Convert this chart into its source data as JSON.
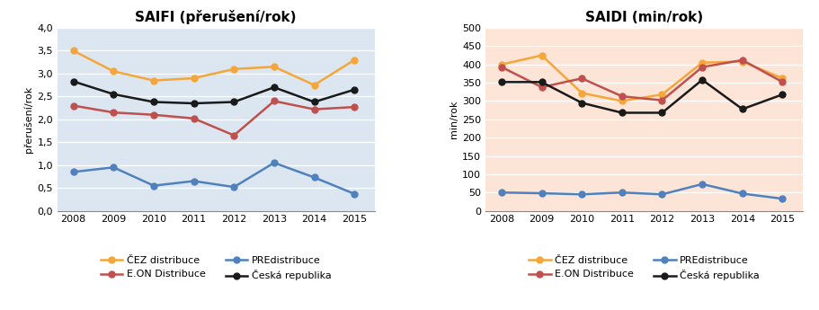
{
  "years": [
    2008,
    2009,
    2010,
    2011,
    2012,
    2013,
    2014,
    2015
  ],
  "saifi": {
    "title": "SAIFI (přerušení/rok)",
    "ylabel": "přerušení/rok",
    "ylim": [
      0.0,
      4.0
    ],
    "yticks": [
      0.0,
      0.5,
      1.0,
      1.5,
      2.0,
      2.5,
      3.0,
      3.5,
      4.0
    ],
    "ytick_labels": [
      "0,0",
      "0,5",
      "1,0",
      "1,5",
      "2,0",
      "2,5",
      "3,0",
      "3,5",
      "4,0"
    ],
    "CEZ": [
      3.5,
      3.05,
      2.85,
      2.9,
      3.1,
      3.15,
      2.75,
      3.3
    ],
    "EON": [
      2.3,
      2.15,
      2.1,
      2.02,
      1.65,
      2.4,
      2.22,
      2.27
    ],
    "PRE": [
      0.85,
      0.95,
      0.55,
      0.65,
      0.52,
      1.05,
      0.73,
      0.37
    ],
    "CR": [
      2.83,
      2.55,
      2.38,
      2.35,
      2.38,
      2.7,
      2.38,
      2.65
    ],
    "bg_color": "#dce6f1"
  },
  "saidi": {
    "title": "SAIDI (min/rok)",
    "ylabel": "min/rok",
    "ylim": [
      0,
      500
    ],
    "yticks": [
      0,
      50,
      100,
      150,
      200,
      250,
      300,
      350,
      400,
      450,
      500
    ],
    "ytick_labels": [
      "0",
      "50",
      "100",
      "150",
      "200",
      "250",
      "300",
      "350",
      "400",
      "450",
      "500"
    ],
    "CEZ": [
      400,
      425,
      322,
      300,
      318,
      405,
      408,
      362
    ],
    "EON": [
      393,
      338,
      362,
      313,
      302,
      393,
      412,
      352
    ],
    "PRE": [
      50,
      48,
      45,
      50,
      45,
      73,
      47,
      33
    ],
    "CR": [
      352,
      352,
      295,
      268,
      268,
      358,
      278,
      318
    ],
    "bg_color": "#fce4d6"
  },
  "colors": {
    "CEZ": "#f4a63a",
    "EON": "#c0504d",
    "PRE": "#4e81bd",
    "CR": "#1a1a1a"
  },
  "legend_labels": {
    "CEZ": "ČEZ distribuce",
    "EON": "E.ON Distribuce",
    "PRE": "PREdistribuce",
    "CR": "Česká republika"
  },
  "marker": "o",
  "markersize": 5,
  "linewidth": 1.8,
  "figsize": [
    9.11,
    3.45
  ],
  "dpi": 100
}
